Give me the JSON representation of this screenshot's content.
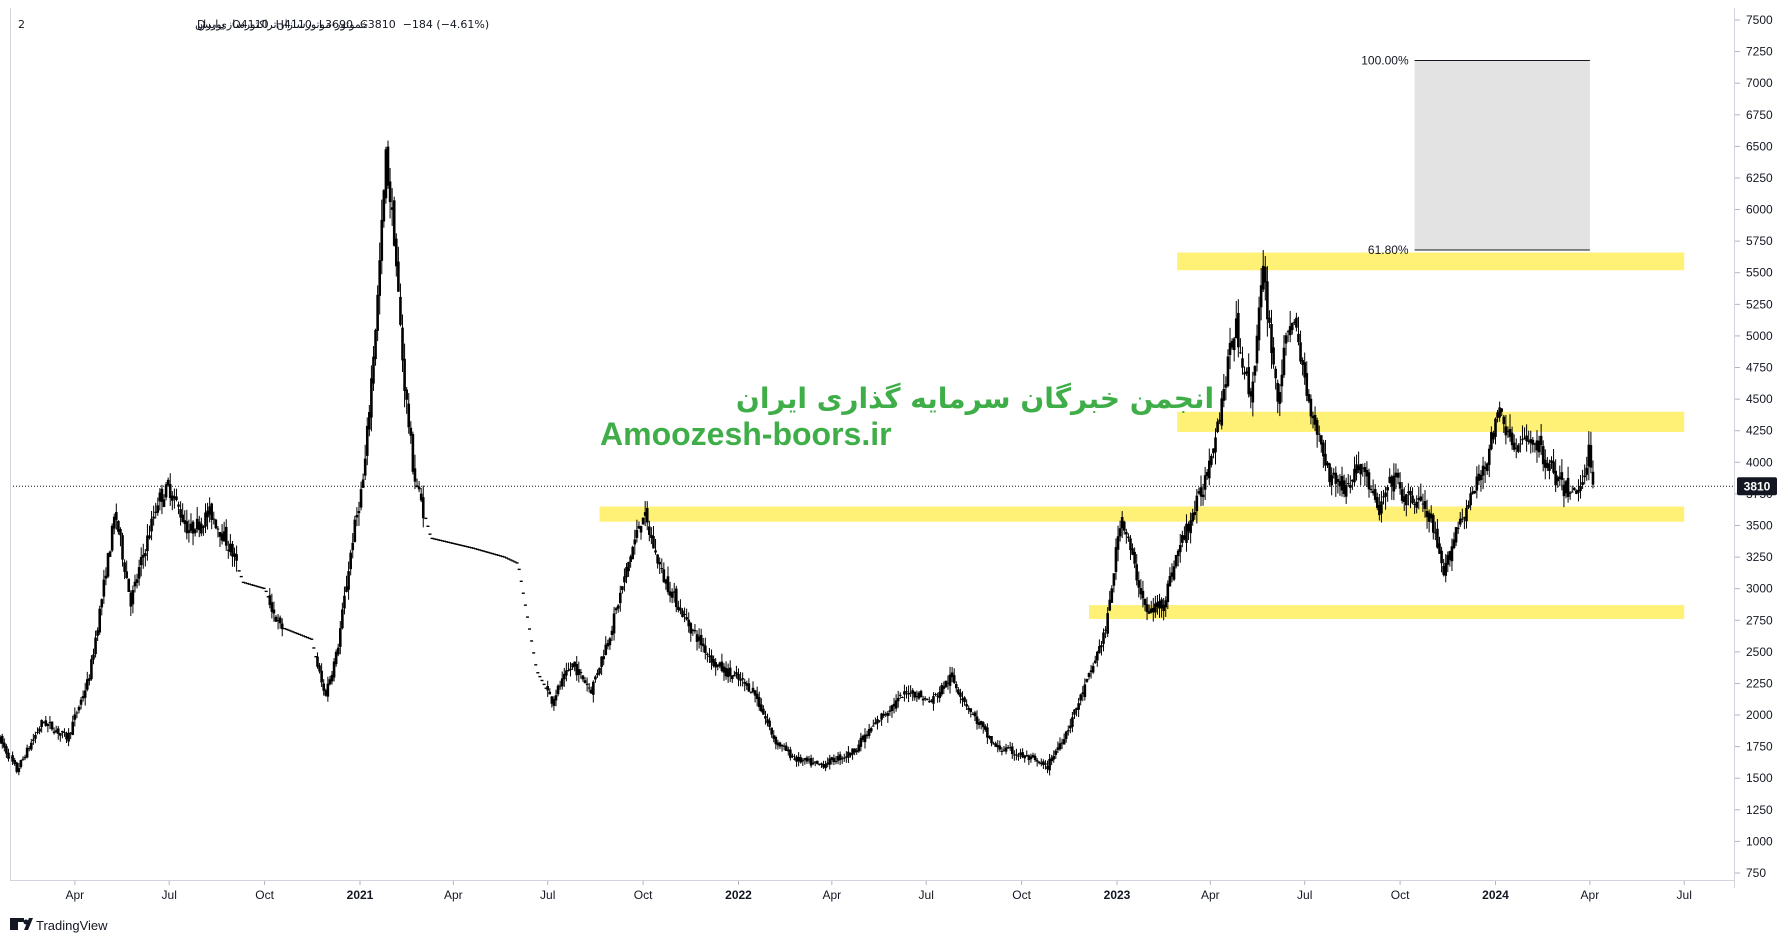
{
  "legend": {
    "symbol": "خموتور-موتورسازان‌تراکتورسازی‌ایران",
    "exchange": "بورس",
    "interval": "D",
    "count_prefix": "2",
    "ohlc_label": "O4110  H4110  L3690  C3810  −184 (−4.61%)"
  },
  "watermark": {
    "line1": "انجمن خبرگان سرمایه گذاری ایران",
    "line2": "Amoozesh-boors.ir"
  },
  "fib": {
    "top_label": "100.00%",
    "mid_label": "61.80%",
    "top_value": 7180,
    "mid_value": 5680,
    "box_color": "#e3e3e3"
  },
  "last_price": {
    "label": "3810",
    "value": 3810
  },
  "brand": {
    "name": "TradingView"
  },
  "colors": {
    "candle": "#000000",
    "zone": "#fff176",
    "tag_bg": "#131722",
    "watermark": "#3fae49"
  },
  "chart_data": {
    "type": "candlestick",
    "y_axis": {
      "min": 750,
      "max": 7500,
      "ticks": [
        "7500",
        "7250",
        "7000",
        "6750",
        "6500",
        "6250",
        "6000",
        "5750",
        "5500",
        "5250",
        "5000",
        "4750",
        "4500",
        "4250",
        "4000",
        "3750",
        "3500",
        "3250",
        "3000",
        "2750",
        "2500",
        "2250",
        "2000",
        "1750",
        "1500",
        "1250",
        "1000",
        "750"
      ]
    },
    "x_axis": {
      "labels": [
        {
          "t": "Apr",
          "d": "2020-04-01",
          "bold": false
        },
        {
          "t": "Jul",
          "d": "2020-07-01",
          "bold": false
        },
        {
          "t": "Oct",
          "d": "2020-10-01",
          "bold": false
        },
        {
          "t": "2021",
          "d": "2021-01-01",
          "bold": true
        },
        {
          "t": "Apr",
          "d": "2021-04-01",
          "bold": false
        },
        {
          "t": "Jul",
          "d": "2021-07-01",
          "bold": false
        },
        {
          "t": "Oct",
          "d": "2021-10-01",
          "bold": false
        },
        {
          "t": "2022",
          "d": "2022-01-01",
          "bold": true
        },
        {
          "t": "Apr",
          "d": "2022-04-01",
          "bold": false
        },
        {
          "t": "Jul",
          "d": "2022-07-01",
          "bold": false
        },
        {
          "t": "Oct",
          "d": "2022-10-01",
          "bold": false
        },
        {
          "t": "2023",
          "d": "2023-01-01",
          "bold": true
        },
        {
          "t": "Apr",
          "d": "2023-04-01",
          "bold": false
        },
        {
          "t": "Jul",
          "d": "2023-07-01",
          "bold": false
        },
        {
          "t": "Oct",
          "d": "2023-10-01",
          "bold": false
        },
        {
          "t": "2024",
          "d": "2024-01-01",
          "bold": true
        },
        {
          "t": "Apr",
          "d": "2024-04-01",
          "bold": false
        },
        {
          "t": "Jul",
          "d": "2024-07-01",
          "bold": false
        }
      ]
    },
    "zones": [
      {
        "from": "2023-02-28",
        "to": "2024-07-01",
        "low": 5520,
        "high": 5660
      },
      {
        "from": "2023-02-28",
        "to": "2024-07-01",
        "low": 4240,
        "high": 4400
      },
      {
        "from": "2021-08-20",
        "to": "2024-07-01",
        "low": 3530,
        "high": 3650
      },
      {
        "from": "2022-12-05",
        "to": "2024-07-01",
        "low": 2760,
        "high": 2870
      }
    ],
    "price_path": [
      [
        "2020-01-20",
        1800
      ],
      [
        "2020-02-05",
        1560
      ],
      [
        "2020-03-01",
        1950
      ],
      [
        "2020-03-25",
        1820
      ],
      [
        "2020-04-15",
        2300
      ],
      [
        "2020-05-10",
        3600
      ],
      [
        "2020-05-25",
        2900
      ],
      [
        "2020-06-20",
        3700
      ],
      [
        "2020-07-01",
        3800
      ],
      [
        "2020-07-20",
        3450
      ],
      [
        "2020-08-10",
        3600
      ],
      [
        "2020-08-30",
        3300
      ],
      [
        "2020-09-10",
        3050
      ],
      [
        "2020-10-01",
        3000
      ],
      [
        "2020-10-15",
        2700
      ],
      [
        "2020-11-15",
        2600
      ],
      [
        "2020-11-28",
        2150
      ],
      [
        "2020-12-10",
        2500
      ],
      [
        "2020-12-25",
        3400
      ],
      [
        "2021-01-05",
        3900
      ],
      [
        "2021-01-18",
        5300
      ],
      [
        "2021-01-26",
        6400
      ],
      [
        "2021-02-03",
        5800
      ],
      [
        "2021-02-12",
        4700
      ],
      [
        "2021-02-22",
        3900
      ],
      [
        "2021-03-10",
        3400
      ],
      [
        "2021-04-20",
        3320
      ],
      [
        "2021-05-20",
        3250
      ],
      [
        "2021-06-02",
        3200
      ],
      [
        "2021-06-20",
        2350
      ],
      [
        "2021-07-05",
        2120
      ],
      [
        "2021-07-25",
        2400
      ],
      [
        "2021-08-12",
        2200
      ],
      [
        "2021-09-01",
        2700
      ],
      [
        "2021-09-20",
        3300
      ],
      [
        "2021-10-01",
        3600
      ],
      [
        "2021-10-20",
        3100
      ],
      [
        "2021-11-15",
        2700
      ],
      [
        "2021-12-10",
        2400
      ],
      [
        "2022-01-15",
        2200
      ],
      [
        "2022-02-05",
        1800
      ],
      [
        "2022-02-25",
        1650
      ],
      [
        "2022-03-20",
        1600
      ],
      [
        "2022-04-20",
        1700
      ],
      [
        "2022-05-20",
        2000
      ],
      [
        "2022-06-15",
        2200
      ],
      [
        "2022-07-05",
        2100
      ],
      [
        "2022-07-25",
        2300
      ],
      [
        "2022-08-15",
        2000
      ],
      [
        "2022-09-05",
        1750
      ],
      [
        "2022-09-25",
        1700
      ],
      [
        "2022-10-15",
        1630
      ],
      [
        "2022-10-25",
        1580
      ],
      [
        "2022-11-15",
        1900
      ],
      [
        "2022-12-05",
        2300
      ],
      [
        "2022-12-22",
        2700
      ],
      [
        "2023-01-05",
        3600
      ],
      [
        "2023-01-20",
        3100
      ],
      [
        "2023-01-30",
        2800
      ],
      [
        "2023-02-15",
        2900
      ],
      [
        "2023-03-01",
        3300
      ],
      [
        "2023-03-25",
        3800
      ],
      [
        "2023-04-10",
        4400
      ],
      [
        "2023-04-25",
        5100
      ],
      [
        "2023-05-10",
        4500
      ],
      [
        "2023-05-22",
        5500
      ],
      [
        "2023-06-05",
        4500
      ],
      [
        "2023-06-18",
        5200
      ],
      [
        "2023-07-05",
        4500
      ],
      [
        "2023-07-25",
        3900
      ],
      [
        "2023-08-10",
        3800
      ],
      [
        "2023-08-25",
        4000
      ],
      [
        "2023-09-10",
        3600
      ],
      [
        "2023-09-25",
        3900
      ],
      [
        "2023-10-05",
        3700
      ],
      [
        "2023-10-20",
        3700
      ],
      [
        "2023-11-01",
        3500
      ],
      [
        "2023-11-12",
        3100
      ],
      [
        "2023-11-25",
        3500
      ],
      [
        "2023-12-08",
        3700
      ],
      [
        "2023-12-22",
        4000
      ],
      [
        "2024-01-05",
        4400
      ],
      [
        "2024-01-20",
        4100
      ],
      [
        "2024-02-05",
        4200
      ],
      [
        "2024-02-20",
        4000
      ],
      [
        "2024-03-05",
        3800
      ],
      [
        "2024-03-20",
        3750
      ],
      [
        "2024-04-01",
        4100
      ],
      [
        "2024-04-05",
        3810
      ]
    ],
    "gaps": [
      {
        "from": "2020-09-05",
        "to": "2020-10-05"
      },
      {
        "from": "2020-10-20",
        "to": "2020-11-20"
      },
      {
        "from": "2021-03-05",
        "to": "2021-06-30"
      }
    ]
  }
}
